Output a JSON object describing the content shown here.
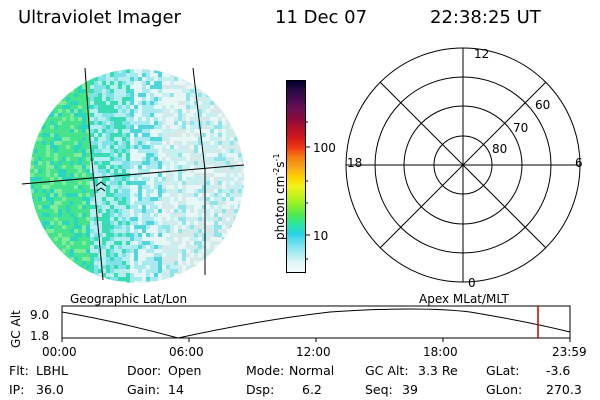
{
  "header": {
    "instrument": "Ultraviolet Imager",
    "date": "11 Dec 07",
    "time": "22:38:25 UT"
  },
  "colorbar": {
    "unit_prefix": "photon cm",
    "unit_exp1": "-2",
    "unit_mid": "s",
    "unit_exp2": "-1",
    "ticks": [
      "100",
      "10"
    ],
    "colors": [
      "#000033",
      "#2a0a40",
      "#4b0b4f",
      "#6e0f52",
      "#8b0a3a",
      "#b5102a",
      "#d11a1a",
      "#f03a12",
      "#f57f10",
      "#f5a41a",
      "#ffd000",
      "#f2f21a",
      "#c8f21a",
      "#8cef2a",
      "#4eea4e",
      "#2ae6a0",
      "#2ad2e6",
      "#6fe0ee",
      "#a8ecf2",
      "#dff7f7",
      "#f2fbfb"
    ]
  },
  "images": {
    "left_caption": "Geographic Lat/Lon",
    "right_caption": "Apex MLat/MLT",
    "mlt_labels": {
      "top": "12",
      "bottom": "0",
      "left": "18",
      "right": "6"
    },
    "lat_labels": [
      "60",
      "70",
      "80"
    ]
  },
  "timeline": {
    "axis_label": "GC Alt",
    "y_ticks": [
      "9.0",
      "1.8"
    ],
    "x_ticks": [
      "00:00",
      "06:00",
      "12:00",
      "18:00",
      "23:59"
    ],
    "marker_color": "#cc0000",
    "current_time_fraction": 0.937
  },
  "status": {
    "flt_label": "Flt:",
    "flt_value": "LBHL",
    "ip_label": "IP:",
    "ip_value": "36.0",
    "door_label": "Door:",
    "door_value": "Open",
    "gain_label": "Gain:",
    "gain_value": "14",
    "mode_label": "Mode:",
    "mode_value": "Normal",
    "dsp_label": "Dsp:",
    "dsp_value": "6.2",
    "gcalt_label": "GC Alt:",
    "gcalt_value": "3.3 Re",
    "seq_label": "Seq:",
    "seq_value": "39",
    "glat_label": "GLat:",
    "glat_value": "-3.6",
    "glon_label": "GLon:",
    "glon_value": "270.3"
  }
}
